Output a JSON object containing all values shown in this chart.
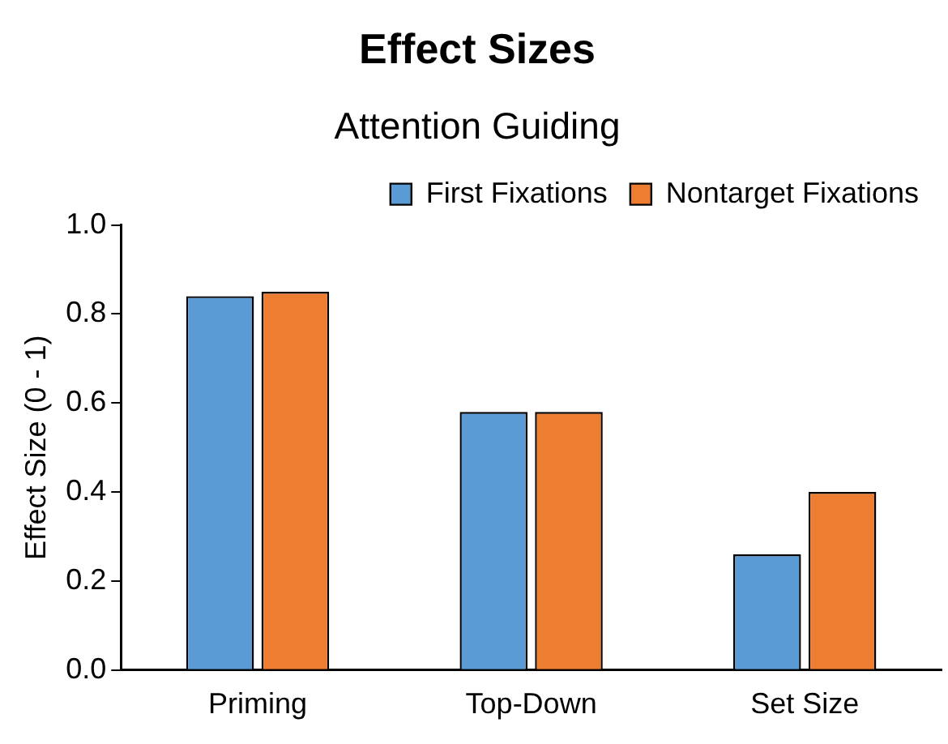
{
  "chart_data": {
    "type": "bar",
    "title": "Effect Sizes",
    "subtitle": "Attention Guiding",
    "ylabel": "Effect Size (0 - 1)",
    "categories": [
      "Priming",
      "Top-Down",
      "Set Size"
    ],
    "series": [
      {
        "name": "First Fixations",
        "color": "#5b9bd5",
        "values": [
          0.84,
          0.58,
          0.26
        ]
      },
      {
        "name": "Nontarget Fixations",
        "color": "#ed7d31",
        "values": [
          0.85,
          0.58,
          0.4
        ]
      }
    ],
    "ylim": [
      0,
      1
    ],
    "yticks": [
      {
        "value": 0,
        "label": "0.0"
      },
      {
        "value": 0.2,
        "label": "0.2"
      },
      {
        "value": 0.4,
        "label": "0.4"
      },
      {
        "value": 0.6,
        "label": "0.6"
      },
      {
        "value": 0.8,
        "label": "0.8"
      },
      {
        "value": 1,
        "label": "1.0"
      }
    ],
    "grid": false,
    "legend": "top"
  }
}
